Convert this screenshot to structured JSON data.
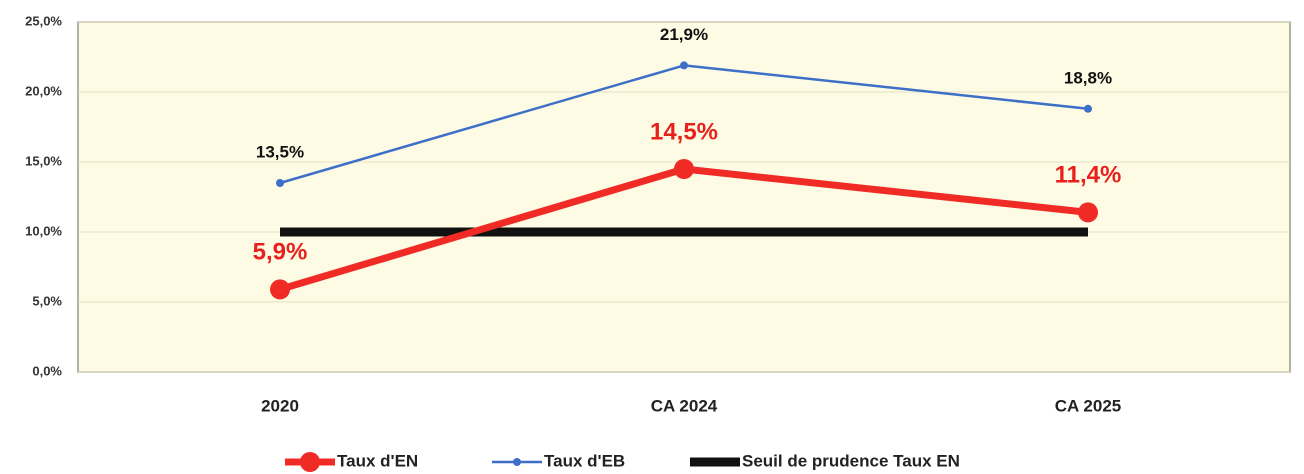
{
  "chart_data": {
    "type": "line",
    "categories": [
      "2020",
      "CA 2024",
      "CA 2025"
    ],
    "series": [
      {
        "name": "Taux d'EN",
        "color": "#f02a25",
        "values": [
          5.9,
          14.5,
          11.4
        ],
        "value_labels": [
          "5,9%",
          "14,5%",
          "11,4%"
        ]
      },
      {
        "name": "Taux d'EB",
        "color": "#3d6fc8",
        "values": [
          13.5,
          21.9,
          18.8
        ],
        "value_labels": [
          "13,5%",
          "21,9%",
          "18,8%"
        ]
      },
      {
        "name": "Seuil de prudence Taux EN",
        "color": "#111111",
        "values": [
          10,
          10,
          10
        ]
      }
    ],
    "ylim": [
      0,
      25
    ],
    "yticks": [
      {
        "value": 0,
        "label": "0,0%"
      },
      {
        "value": 5,
        "label": "5,0%"
      },
      {
        "value": 10,
        "label": "10,0%"
      },
      {
        "value": 15,
        "label": "15,0%"
      },
      {
        "value": 20,
        "label": "20,0%"
      },
      {
        "value": 25,
        "label": "25,0%"
      }
    ],
    "grid": true
  }
}
